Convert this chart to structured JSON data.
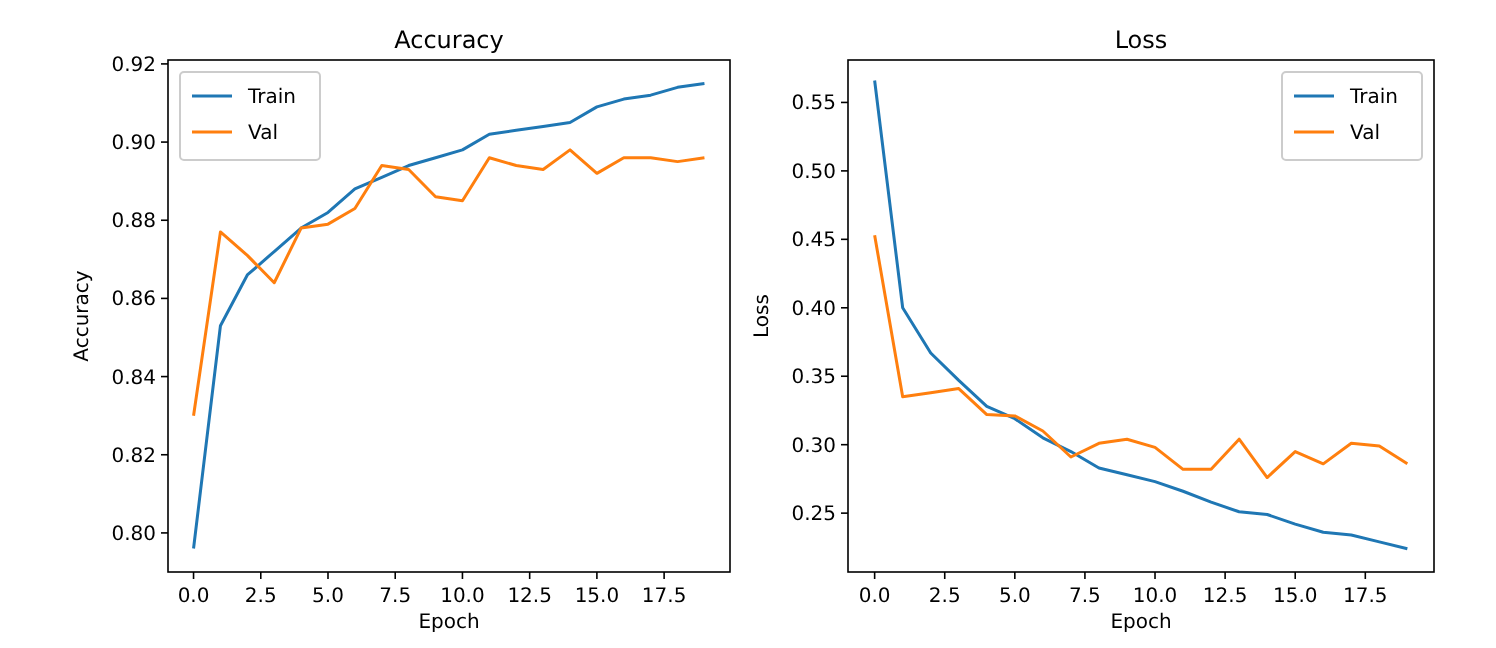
{
  "chart_data": [
    {
      "type": "line",
      "title": "Accuracy",
      "xlabel": "Epoch",
      "ylabel": "Accuracy",
      "x": [
        0,
        1,
        2,
        3,
        4,
        5,
        6,
        7,
        8,
        9,
        10,
        11,
        12,
        13,
        14,
        15,
        16,
        17,
        18,
        19
      ],
      "series": [
        {
          "name": "Train",
          "color": "#1f77b4",
          "values": [
            0.796,
            0.853,
            0.866,
            0.872,
            0.878,
            0.882,
            0.888,
            0.891,
            0.894,
            0.896,
            0.898,
            0.902,
            0.903,
            0.904,
            0.905,
            0.909,
            0.911,
            0.912,
            0.914,
            0.915
          ]
        },
        {
          "name": "Val",
          "color": "#ff7f0e",
          "values": [
            0.83,
            0.877,
            0.871,
            0.864,
            0.878,
            0.879,
            0.883,
            0.894,
            0.893,
            0.886,
            0.885,
            0.896,
            0.894,
            0.893,
            0.898,
            0.892,
            0.896,
            0.896,
            0.895,
            0.896
          ]
        }
      ],
      "xlim": [
        -0.95,
        19.95
      ],
      "ylim": [
        0.79,
        0.921
      ],
      "xticks": [
        {
          "value": 0,
          "label": "0.0"
        },
        {
          "value": 2.5,
          "label": "2.5"
        },
        {
          "value": 5,
          "label": "5.0"
        },
        {
          "value": 7.5,
          "label": "7.5"
        },
        {
          "value": 10,
          "label": "10.0"
        },
        {
          "value": 12.5,
          "label": "12.5"
        },
        {
          "value": 15,
          "label": "15.0"
        },
        {
          "value": 17.5,
          "label": "17.5"
        }
      ],
      "yticks": [
        {
          "value": 0.8,
          "label": "0.80"
        },
        {
          "value": 0.82,
          "label": "0.82"
        },
        {
          "value": 0.84,
          "label": "0.84"
        },
        {
          "value": 0.86,
          "label": "0.86"
        },
        {
          "value": 0.88,
          "label": "0.88"
        },
        {
          "value": 0.9,
          "label": "0.90"
        },
        {
          "value": 0.92,
          "label": "0.92"
        }
      ],
      "legend": "top left",
      "marker": "none",
      "line_style": "solid",
      "grid": false
    },
    {
      "type": "line",
      "title": "Loss",
      "xlabel": "Epoch",
      "ylabel": "Loss",
      "x": [
        0,
        1,
        2,
        3,
        4,
        5,
        6,
        7,
        8,
        9,
        10,
        11,
        12,
        13,
        14,
        15,
        16,
        17,
        18,
        19
      ],
      "series": [
        {
          "name": "Train",
          "color": "#1f77b4",
          "values": [
            0.566,
            0.4,
            0.367,
            0.347,
            0.328,
            0.319,
            0.305,
            0.295,
            0.283,
            0.278,
            0.273,
            0.266,
            0.258,
            0.251,
            0.249,
            0.242,
            0.236,
            0.234,
            0.229,
            0.224
          ]
        },
        {
          "name": "Val",
          "color": "#ff7f0e",
          "values": [
            0.453,
            0.335,
            0.338,
            0.341,
            0.322,
            0.321,
            0.31,
            0.291,
            0.301,
            0.304,
            0.298,
            0.282,
            0.282,
            0.304,
            0.276,
            0.295,
            0.286,
            0.301,
            0.299,
            0.286
          ]
        }
      ],
      "xlim": [
        -0.95,
        19.95
      ],
      "ylim": [
        0.207,
        0.581
      ],
      "xticks": [
        {
          "value": 0,
          "label": "0.0"
        },
        {
          "value": 2.5,
          "label": "2.5"
        },
        {
          "value": 5,
          "label": "5.0"
        },
        {
          "value": 7.5,
          "label": "7.5"
        },
        {
          "value": 10,
          "label": "10.0"
        },
        {
          "value": 12.5,
          "label": "12.5"
        },
        {
          "value": 15,
          "label": "15.0"
        },
        {
          "value": 17.5,
          "label": "17.5"
        }
      ],
      "yticks": [
        {
          "value": 0.25,
          "label": "0.25"
        },
        {
          "value": 0.3,
          "label": "0.30"
        },
        {
          "value": 0.35,
          "label": "0.35"
        },
        {
          "value": 0.4,
          "label": "0.40"
        },
        {
          "value": 0.45,
          "label": "0.45"
        },
        {
          "value": 0.5,
          "label": "0.50"
        },
        {
          "value": 0.55,
          "label": "0.55"
        }
      ],
      "legend": "top right",
      "marker": "none",
      "line_style": "solid",
      "grid": false
    }
  ]
}
